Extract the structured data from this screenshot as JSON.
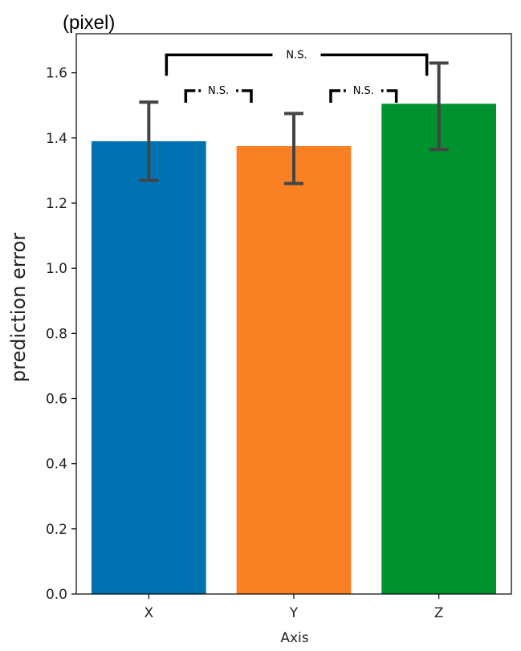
{
  "chart_data": {
    "type": "bar",
    "unit_label": "(pixel)",
    "xlabel": "Axis",
    "ylabel": "prediction error",
    "categories": [
      "X",
      "Y",
      "Z"
    ],
    "values": [
      1.39,
      1.375,
      1.505
    ],
    "error_low": [
      1.27,
      1.26,
      1.365
    ],
    "error_high": [
      1.51,
      1.475,
      1.63
    ],
    "colors": [
      "#0072b2",
      "#f98124",
      "#00922f"
    ],
    "error_color": "#444444",
    "ylim": [
      0,
      1.72
    ],
    "yticks": [
      "0.0",
      "0.2",
      "0.4",
      "0.6",
      "0.8",
      "1.0",
      "1.2",
      "1.4",
      "1.6"
    ],
    "grid": false,
    "significance": [
      {
        "from": 0,
        "to": 1,
        "label": "N.S.",
        "level": 1.545,
        "style": "dashed"
      },
      {
        "from": 1,
        "to": 2,
        "label": "N.S.",
        "level": 1.545,
        "style": "dashed"
      },
      {
        "from": 0,
        "to": 2,
        "label": "N.S.",
        "level": 1.655,
        "style": "solid"
      }
    ]
  }
}
